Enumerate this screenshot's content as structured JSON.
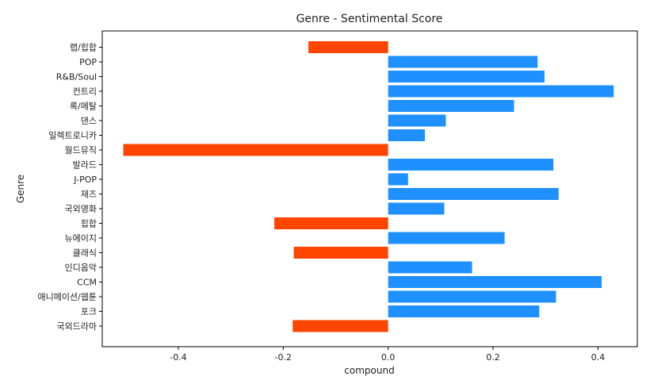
{
  "chart_data": {
    "type": "bar",
    "orientation": "horizontal",
    "title": "Genre - Sentimental Score",
    "xlabel": "compound",
    "ylabel": "Genre",
    "xlim": [
      -0.545,
      0.475
    ],
    "xticks": [
      -0.4,
      -0.2,
      0.0,
      0.2,
      0.4
    ],
    "xtick_labels": [
      "-0.4",
      "-0.2",
      "0.0",
      "0.2",
      "0.4"
    ],
    "grid": false,
    "colors": {
      "positive": "#1E90FF",
      "negative": "#FF4500"
    },
    "categories": [
      "랩/힙합",
      "POP",
      "R&B/Soul",
      "컨트리",
      "록/메탈",
      "댄스",
      "일렉트로니카",
      "월드뮤직",
      "발라드",
      "J-POP",
      "재즈",
      "국외영화",
      "힙합",
      "뉴에이지",
      "클래식",
      "인디음악",
      "CCM",
      "애니메이션/웹툰",
      "포크",
      "국외드라마"
    ],
    "values": [
      -0.152,
      0.285,
      0.298,
      0.43,
      0.24,
      0.11,
      0.07,
      -0.505,
      0.315,
      0.038,
      0.325,
      0.107,
      -0.217,
      0.222,
      -0.18,
      0.16,
      0.407,
      0.32,
      0.288,
      -0.182
    ]
  }
}
